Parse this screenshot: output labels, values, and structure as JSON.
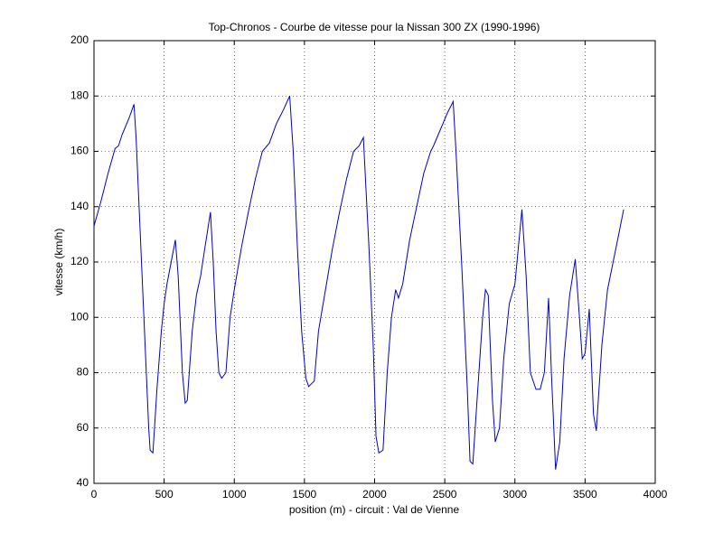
{
  "chart_data": {
    "type": "line",
    "title": "Top-Chronos - Courbe de vitesse pour la Nissan 300 ZX (1990-1996)",
    "x_label": "position (m) - circuit : Val de Vienne",
    "y_label": "vitesse (km/h)",
    "color": "#0000cc",
    "grid": true,
    "xlim": [
      0,
      4000
    ],
    "xticks": [
      0,
      500,
      1000,
      1500,
      2000,
      2500,
      3000,
      3500,
      4000
    ],
    "ylim": [
      40,
      200
    ],
    "yticks": [
      40,
      60,
      80,
      100,
      120,
      140,
      160,
      180,
      200
    ],
    "x": [
      0,
      50,
      100,
      150,
      175,
      200,
      250,
      285,
      300,
      330,
      360,
      390,
      400,
      420,
      450,
      480,
      500,
      520,
      550,
      580,
      600,
      630,
      650,
      665,
      700,
      730,
      760,
      790,
      830,
      850,
      870,
      890,
      910,
      940,
      970,
      1000,
      1050,
      1100,
      1150,
      1200,
      1250,
      1300,
      1350,
      1395,
      1420,
      1450,
      1480,
      1510,
      1530,
      1570,
      1600,
      1650,
      1700,
      1750,
      1800,
      1850,
      1890,
      1920,
      1930,
      1960,
      1990,
      2010,
      2030,
      2060,
      2090,
      2120,
      2150,
      2170,
      2200,
      2250,
      2300,
      2350,
      2400,
      2420,
      2470,
      2520,
      2560,
      2580,
      2620,
      2660,
      2680,
      2700,
      2730,
      2770,
      2790,
      2810,
      2840,
      2860,
      2890,
      2920,
      2960,
      3000,
      3050,
      3080,
      3110,
      3150,
      3180,
      3210,
      3240,
      3260,
      3290,
      3320,
      3350,
      3390,
      3430,
      3460,
      3480,
      3500,
      3530,
      3560,
      3580,
      3620,
      3660,
      3700,
      3740,
      3775
    ],
    "values": [
      133,
      142,
      152,
      161,
      162,
      166,
      172,
      177,
      165,
      130,
      95,
      60,
      52,
      51,
      75,
      95,
      105,
      112,
      120,
      128,
      115,
      80,
      69,
      70,
      95,
      108,
      115,
      125,
      138,
      120,
      95,
      80,
      78,
      80,
      100,
      110,
      125,
      138,
      150,
      160,
      163,
      170,
      175,
      180,
      160,
      125,
      95,
      78,
      75,
      77,
      95,
      110,
      125,
      138,
      150,
      160,
      162,
      165,
      155,
      125,
      90,
      57,
      51,
      52,
      80,
      100,
      110,
      107,
      112,
      128,
      140,
      152,
      160,
      162,
      168,
      174,
      178,
      160,
      120,
      75,
      48,
      47,
      70,
      100,
      110,
      108,
      70,
      55,
      60,
      85,
      105,
      112,
      139,
      115,
      80,
      74,
      74,
      80,
      107,
      80,
      45,
      55,
      85,
      108,
      121,
      100,
      85,
      87,
      103,
      65,
      59,
      90,
      110,
      120,
      130,
      139
    ]
  }
}
